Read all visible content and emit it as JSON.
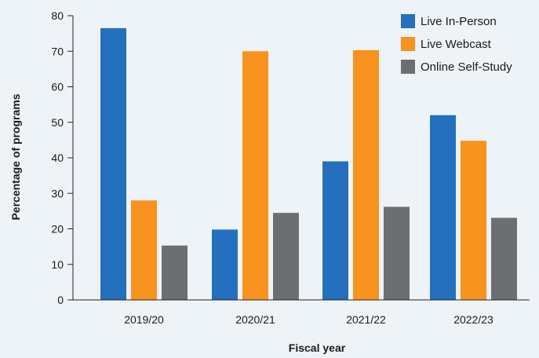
{
  "chart_data": {
    "type": "bar",
    "title": "",
    "xlabel": "Fiscal year",
    "ylabel": "Percentage of programs",
    "categories": [
      "2019/20",
      "2020/21",
      "2021/22",
      "2022/23"
    ],
    "series": [
      {
        "name": "Live In-Person",
        "color": "#2470be",
        "values": [
          76.5,
          19.8,
          39.0,
          52.0
        ]
      },
      {
        "name": "Live Webcast",
        "color": "#f7931e",
        "values": [
          28.0,
          70.0,
          70.3,
          44.8
        ]
      },
      {
        "name": "Online Self-Study",
        "color": "#6d6e71",
        "values": [
          15.3,
          24.5,
          26.2,
          23.1
        ]
      }
    ],
    "ylim": [
      0,
      80
    ],
    "yticks": [
      0,
      10,
      20,
      30,
      40,
      50,
      60,
      70,
      80
    ],
    "grid": false,
    "legend": "top-right"
  }
}
